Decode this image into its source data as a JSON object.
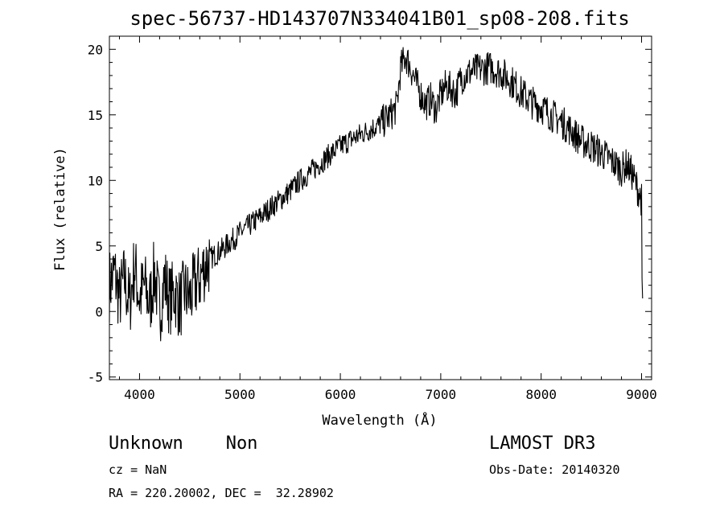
{
  "chart_data": {
    "type": "line",
    "title": "spec-56737-HD143707N334041B01_sp08-208.fits",
    "xlabel": "Wavelength (Å)",
    "ylabel": "Flux (relative)",
    "xlim": [
      3700,
      9100
    ],
    "ylim": [
      -5.2,
      21
    ],
    "xticks": [
      4000,
      5000,
      6000,
      7000,
      8000,
      9000
    ],
    "yticks": [
      -5,
      0,
      5,
      10,
      15,
      20
    ],
    "grid": false,
    "series": [
      {
        "x": [
          3700,
          3750,
          3800,
          3850,
          3900,
          3950,
          4000,
          4050,
          4100,
          4150,
          4200,
          4250,
          4300,
          4350,
          4400,
          4450,
          4500,
          4550,
          4600,
          4650,
          4700,
          4750,
          4800,
          4850,
          4900,
          4950,
          5000,
          5100,
          5200,
          5300,
          5400,
          5500,
          5600,
          5700,
          5800,
          5900,
          6000,
          6100,
          6200,
          6300,
          6400,
          6500,
          6560,
          6600,
          6650,
          6700,
          6750,
          6800,
          6850,
          6900,
          6950,
          7000,
          7050,
          7100,
          7150,
          7200,
          7300,
          7400,
          7500,
          7600,
          7700,
          7800,
          7900,
          8000,
          8100,
          8200,
          8300,
          8400,
          8500,
          8600,
          8700,
          8800,
          8850,
          8900,
          8950,
          9000,
          9010
        ],
        "y": [
          2.0,
          3.0,
          1.0,
          2.5,
          0.5,
          3.5,
          1.0,
          2.0,
          0.5,
          3.0,
          0.0,
          2.5,
          0.8,
          1.5,
          0.5,
          1.5,
          1.0,
          2.0,
          2.5,
          3.5,
          4.0,
          4.3,
          4.6,
          4.9,
          5.3,
          5.6,
          6.0,
          6.6,
          7.2,
          7.9,
          8.5,
          9.2,
          10.0,
          10.6,
          11.3,
          12.0,
          12.6,
          13.1,
          13.5,
          13.9,
          14.3,
          15.0,
          15.6,
          18.5,
          19.5,
          18.6,
          17.5,
          16.6,
          15.8,
          16.2,
          15.4,
          16.5,
          17.2,
          17.0,
          16.6,
          17.8,
          18.3,
          18.5,
          18.6,
          18.2,
          17.6,
          16.7,
          16.0,
          15.6,
          15.0,
          14.5,
          13.8,
          13.0,
          12.6,
          12.1,
          11.5,
          10.8,
          11.2,
          10.6,
          9.6,
          8.5,
          1.0
        ]
      }
    ]
  },
  "info": {
    "object": "Unknown    Non",
    "survey": "LAMOST DR3",
    "cz": "cz = NaN",
    "obs_date": "Obs-Date: 20140320",
    "coords": "RA = 220.20002, DEC =  32.28902"
  }
}
